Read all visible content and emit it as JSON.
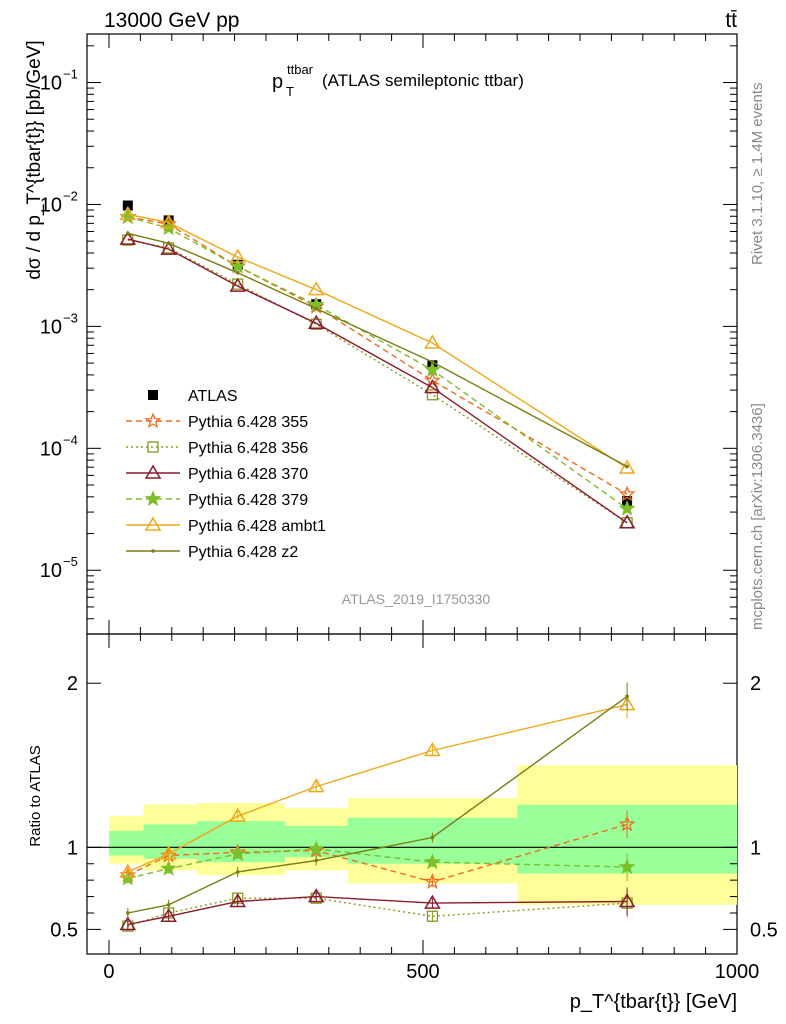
{
  "header": {
    "left": "13000 GeV pp",
    "right": "tt̄"
  },
  "plot_title": {
    "main": "p",
    "sub": "T",
    "sup": "ttbar",
    "rest": " (ATLAS semileptonic ttbar)"
  },
  "side_labels": {
    "rivet": "Rivet 3.1.10, ≥ 1.4M events",
    "mcplots": "mcplots.cern.ch [arXiv:1306.3436]"
  },
  "watermark": "ATLAS_2019_I1750330",
  "axes": {
    "ylabel_top": "dσ / d p_T^{tbar{t}} [pb/GeV]",
    "ylabel_bottom": "Ratio to ATLAS",
    "xlabel": "p_T^{tbar{t}} [GeV]"
  },
  "chart_data": [
    {
      "type": "line",
      "panel": "main",
      "yscale": "log",
      "xlim": [
        -35,
        1000
      ],
      "ylim": [
        3e-06,
        0.25
      ],
      "ytick_labels": [
        "10^-5",
        "10^-4",
        "10^-3",
        "10^-2",
        "10^-1"
      ],
      "xtick_labels": [
        "0",
        "500",
        "1000"
      ],
      "x": [
        30,
        95,
        205,
        330,
        515,
        825
      ],
      "bin_edges": [
        0,
        55,
        140,
        280,
        380,
        650,
        1000
      ],
      "series": [
        {
          "name": "ATLAS",
          "color": "#000000",
          "style": "data",
          "values": [
            0.0098,
            0.0074,
            0.0032,
            0.00152,
            0.00048,
            3.7e-05
          ]
        },
        {
          "name": "Pythia 6.428 355",
          "color": "#f26b1d",
          "style": "dashed",
          "marker": "star-open",
          "values": [
            0.0079,
            0.0069,
            0.0031,
            0.00145,
            0.00036,
            4.2e-05
          ]
        },
        {
          "name": "Pythia 6.428 356",
          "color": "#8a9a1b",
          "style": "dotted",
          "marker": "square-open",
          "values": [
            0.0051,
            0.0044,
            0.00222,
            0.00104,
            0.000275,
            2.45e-05
          ]
        },
        {
          "name": "Pythia 6.428 370",
          "color": "#8b1a2b",
          "style": "solid",
          "marker": "triangle-open",
          "values": [
            0.0052,
            0.0043,
            0.00214,
            0.00106,
            0.000315,
            2.45e-05
          ]
        },
        {
          "name": "Pythia 6.428 379",
          "color": "#7cbf2a",
          "style": "dashed",
          "marker": "star-filled",
          "values": [
            0.0079,
            0.0064,
            0.0031,
            0.0015,
            0.00044,
            3.2e-05
          ]
        },
        {
          "name": "Pythia 6.428 ambt1",
          "color": "#f0a81a",
          "style": "solid",
          "marker": "triangle-open",
          "values": [
            0.0083,
            0.0071,
            0.0037,
            0.002,
            0.00073,
            6.9e-05
          ]
        },
        {
          "name": "Pythia 6.428 z2",
          "color": "#7a7f12",
          "style": "solid",
          "marker": "dot",
          "values": [
            0.0058,
            0.0048,
            0.00275,
            0.0014,
            0.00051,
            7.1e-05
          ]
        }
      ]
    },
    {
      "type": "line",
      "panel": "ratio",
      "xlim": [
        -35,
        1000
      ],
      "ylim": [
        0.35,
        2.3
      ],
      "ytick_labels": [
        "0.5",
        "1",
        "2"
      ],
      "x": [
        30,
        95,
        205,
        330,
        515,
        825
      ],
      "bands": {
        "bin_edges": [
          0,
          55,
          140,
          280,
          380,
          650,
          1000
        ],
        "outer": [
          [
            0.9,
            1.19
          ],
          [
            0.86,
            1.26
          ],
          [
            0.83,
            1.27
          ],
          [
            0.86,
            1.24
          ],
          [
            0.78,
            1.3
          ],
          [
            0.65,
            1.5
          ]
        ],
        "inner": [
          [
            0.95,
            1.1
          ],
          [
            0.93,
            1.14
          ],
          [
            0.91,
            1.16
          ],
          [
            0.94,
            1.13
          ],
          [
            0.9,
            1.18
          ],
          [
            0.84,
            1.26
          ]
        ]
      },
      "series": [
        {
          "name": "Pythia 6.428 355",
          "color": "#f26b1d",
          "values": [
            0.83,
            0.95,
            0.97,
            0.98,
            0.79,
            1.14
          ]
        },
        {
          "name": "Pythia 6.428 356",
          "color": "#8a9a1b",
          "values": [
            0.52,
            0.6,
            0.69,
            0.69,
            0.58,
            0.66
          ]
        },
        {
          "name": "Pythia 6.428 370",
          "color": "#8b1a2b",
          "values": [
            0.53,
            0.58,
            0.67,
            0.7,
            0.66,
            0.67
          ]
        },
        {
          "name": "Pythia 6.428 379",
          "color": "#7cbf2a",
          "values": [
            0.81,
            0.87,
            0.96,
            0.99,
            0.91,
            0.88
          ]
        },
        {
          "name": "Pythia 6.428 ambt1",
          "color": "#f0a81a",
          "values": [
            0.85,
            0.96,
            1.19,
            1.37,
            1.59,
            1.87
          ]
        },
        {
          "name": "Pythia 6.428 z2",
          "color": "#7a7f12",
          "values": [
            0.6,
            0.65,
            0.85,
            0.92,
            1.06,
            1.92
          ]
        }
      ]
    }
  ]
}
